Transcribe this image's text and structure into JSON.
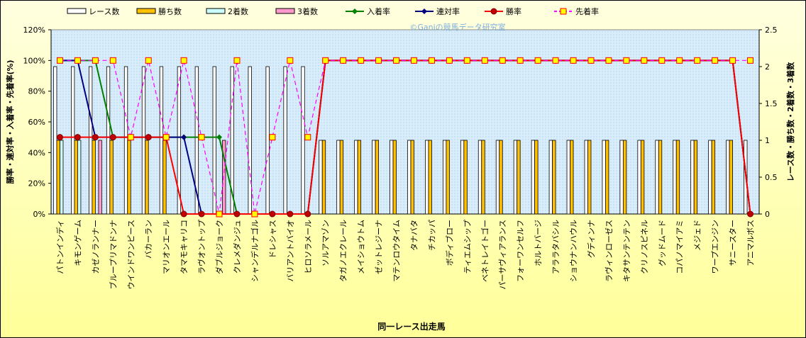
{
  "chart_data": {
    "type": "combo",
    "annotation": "©Ganiの競馬データ研究室",
    "y_label": "勝率・連対率・入着率・先着率(%)",
    "y2_label": "レース数・勝ち数・2着数・3着数",
    "x_label": "同一レース出走馬",
    "categories": [
      "パトンインディ",
      "キモンゲーム",
      "カゼノランナー",
      "ブループリマドンナ",
      "ウインドワンピース",
      "バカーラン",
      "マリオンエール",
      "タマモキャリコ",
      "ラヴオントップ",
      "ダブルジョーク",
      "クレメダンジュ",
      "シャンデルナゴル",
      "ドレシャス",
      "バリアントバイオ",
      "ヒロソラメール",
      "ソルアマゾン",
      "タガノエクレール",
      "メイショウトム",
      "ゼットレジーナ",
      "マテンロウタイム",
      "タナバタ",
      "チカッパ",
      "ボディブロー",
      "ティエムシップ",
      "ベネトレイトゴー",
      "パーサヴィアランス",
      "フォーワンセルフ",
      "ホルトバージ",
      "アララタバシル",
      "ショウナンハウル",
      "グディンナ",
      "ラヴィンローゼス",
      "キタサンテンテン",
      "クリノスピネル",
      "グッドムード",
      "コパノマイアミ",
      "メジェド",
      "ワープエンジン",
      "サニースター",
      "アニマルボス"
    ],
    "ylim": [
      0,
      120
    ],
    "yticks": [
      {
        "value": 0,
        "label": "0%"
      },
      {
        "value": 20,
        "label": "20%"
      },
      {
        "value": 40,
        "label": "40%"
      },
      {
        "value": 60,
        "label": "60%"
      },
      {
        "value": 80,
        "label": "80%"
      },
      {
        "value": 100,
        "label": "100%"
      },
      {
        "value": 120,
        "label": "120%"
      }
    ],
    "y2lim": [
      0,
      2.5
    ],
    "y2ticks": [
      0,
      0.5,
      1,
      1.5,
      2,
      2.5
    ],
    "grid": false,
    "series": [
      {
        "name": "レース数",
        "type": "bar",
        "axis": "y2",
        "color": "#ffffff",
        "values": [
          2,
          2,
          2,
          2,
          2,
          2,
          2,
          2,
          2,
          2,
          2,
          2,
          2,
          2,
          2,
          1,
          1,
          1,
          1,
          1,
          1,
          1,
          1,
          1,
          1,
          1,
          1,
          1,
          1,
          1,
          1,
          1,
          1,
          1,
          1,
          1,
          1,
          1,
          1,
          1
        ]
      },
      {
        "name": "勝ち数",
        "type": "bar",
        "axis": "y2",
        "color": "#ffc000",
        "values": [
          1,
          1,
          1,
          1,
          1,
          1,
          1,
          0,
          0,
          0,
          0,
          0,
          0,
          0,
          0,
          1,
          1,
          1,
          1,
          1,
          1,
          1,
          1,
          1,
          1,
          1,
          1,
          1,
          1,
          1,
          1,
          1,
          1,
          1,
          1,
          1,
          1,
          1,
          1,
          0
        ]
      },
      {
        "name": "2着数",
        "type": "bar",
        "axis": "y2",
        "color": "#ccffff",
        "values": [
          1,
          1,
          0,
          0,
          0,
          0,
          0,
          0,
          0,
          0,
          0,
          0,
          0,
          0,
          0,
          0,
          0,
          0,
          0,
          0,
          0,
          0,
          0,
          0,
          0,
          0,
          0,
          0,
          0,
          0,
          0,
          0,
          0,
          0,
          0,
          0,
          0,
          0,
          0,
          0
        ]
      },
      {
        "name": "3着数",
        "type": "bar",
        "axis": "y2",
        "color": "#ff99cc",
        "values": [
          0,
          0,
          1,
          0,
          0,
          0,
          0,
          0,
          0,
          1,
          0,
          0,
          0,
          0,
          0,
          0,
          0,
          0,
          0,
          0,
          0,
          0,
          0,
          0,
          0,
          0,
          0,
          0,
          0,
          0,
          0,
          0,
          0,
          0,
          0,
          0,
          0,
          0,
          0,
          0
        ]
      },
      {
        "name": "入着率",
        "type": "line",
        "marker": "diamond",
        "color": "#008000",
        "values": [
          100,
          100,
          100,
          50,
          50,
          50,
          50,
          50,
          50,
          50,
          0,
          0,
          0,
          0,
          0,
          100,
          100,
          100,
          100,
          100,
          100,
          100,
          100,
          100,
          100,
          100,
          100,
          100,
          100,
          100,
          100,
          100,
          100,
          100,
          100,
          100,
          100,
          100,
          100,
          0
        ]
      },
      {
        "name": "連対率",
        "type": "line",
        "marker": "diamond",
        "color": "#000080",
        "values": [
          100,
          100,
          50,
          50,
          50,
          50,
          50,
          50,
          0,
          0,
          0,
          0,
          0,
          0,
          0,
          100,
          100,
          100,
          100,
          100,
          100,
          100,
          100,
          100,
          100,
          100,
          100,
          100,
          100,
          100,
          100,
          100,
          100,
          100,
          100,
          100,
          100,
          100,
          100,
          0
        ]
      },
      {
        "name": "勝率",
        "type": "line",
        "marker": "circle",
        "color": "#ff0000",
        "values": [
          50,
          50,
          50,
          50,
          50,
          50,
          50,
          0,
          0,
          0,
          0,
          0,
          0,
          0,
          0,
          100,
          100,
          100,
          100,
          100,
          100,
          100,
          100,
          100,
          100,
          100,
          100,
          100,
          100,
          100,
          100,
          100,
          100,
          100,
          100,
          100,
          100,
          100,
          100,
          0
        ]
      },
      {
        "name": "先着率",
        "type": "line",
        "marker": "square",
        "dashed": true,
        "color": "#ff00ff",
        "values": [
          100,
          100,
          100,
          100,
          50,
          100,
          50,
          100,
          50,
          0,
          100,
          0,
          50,
          100,
          50,
          100,
          100,
          100,
          100,
          100,
          100,
          100,
          100,
          100,
          100,
          100,
          100,
          100,
          100,
          100,
          100,
          100,
          100,
          100,
          100,
          100,
          100,
          100,
          100,
          100
        ]
      }
    ]
  }
}
